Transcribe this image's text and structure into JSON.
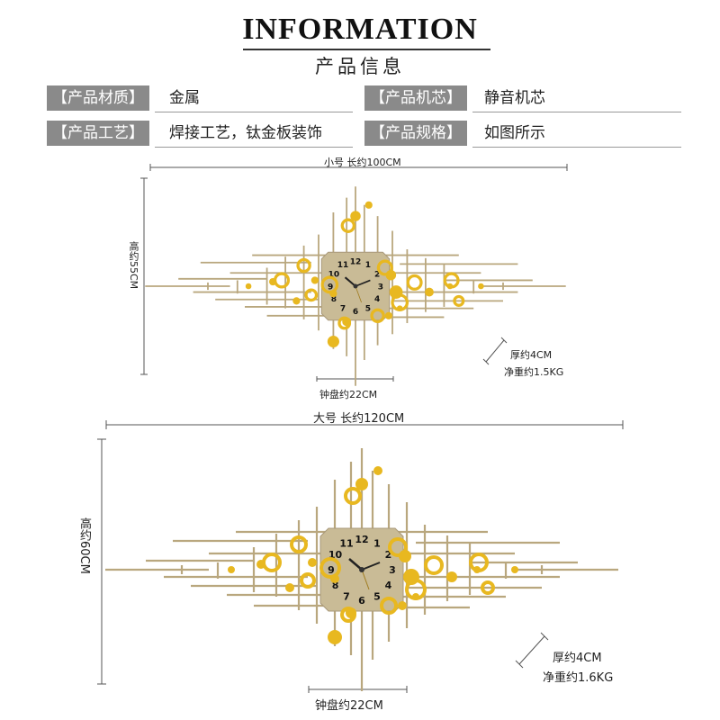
{
  "header": {
    "title": "INFORMATION",
    "subtitle": "产品信息"
  },
  "specs": [
    {
      "label": "【产品材质】",
      "value": "金属"
    },
    {
      "label": "【产品机芯】",
      "value": "静音机芯"
    },
    {
      "label": "【产品工艺】",
      "value": "焊接工艺，钛金板装饰"
    },
    {
      "label": "【产品规格】",
      "value": "如图所示"
    }
  ],
  "small": {
    "length": "小号 长约100CM",
    "height": "高约55CM",
    "dial": "钟盘约22CM",
    "thickness": "厚约4CM",
    "weight": "净重约1.5KG"
  },
  "large": {
    "length": "大号 长约120CM",
    "height": "高约60CM",
    "dial": "钟盘约22CM",
    "thickness": "厚约4CM",
    "weight": "净重约1.6KG"
  },
  "dial_numbers": [
    "12",
    "1",
    "2",
    "3",
    "4",
    "5",
    "6",
    "7",
    "8",
    "9",
    "10",
    "11"
  ],
  "colors": {
    "gold": "#e8b820",
    "bar": "#b9a77e",
    "dial": "#c9bb96",
    "label_bg": "#8a8a8a"
  }
}
